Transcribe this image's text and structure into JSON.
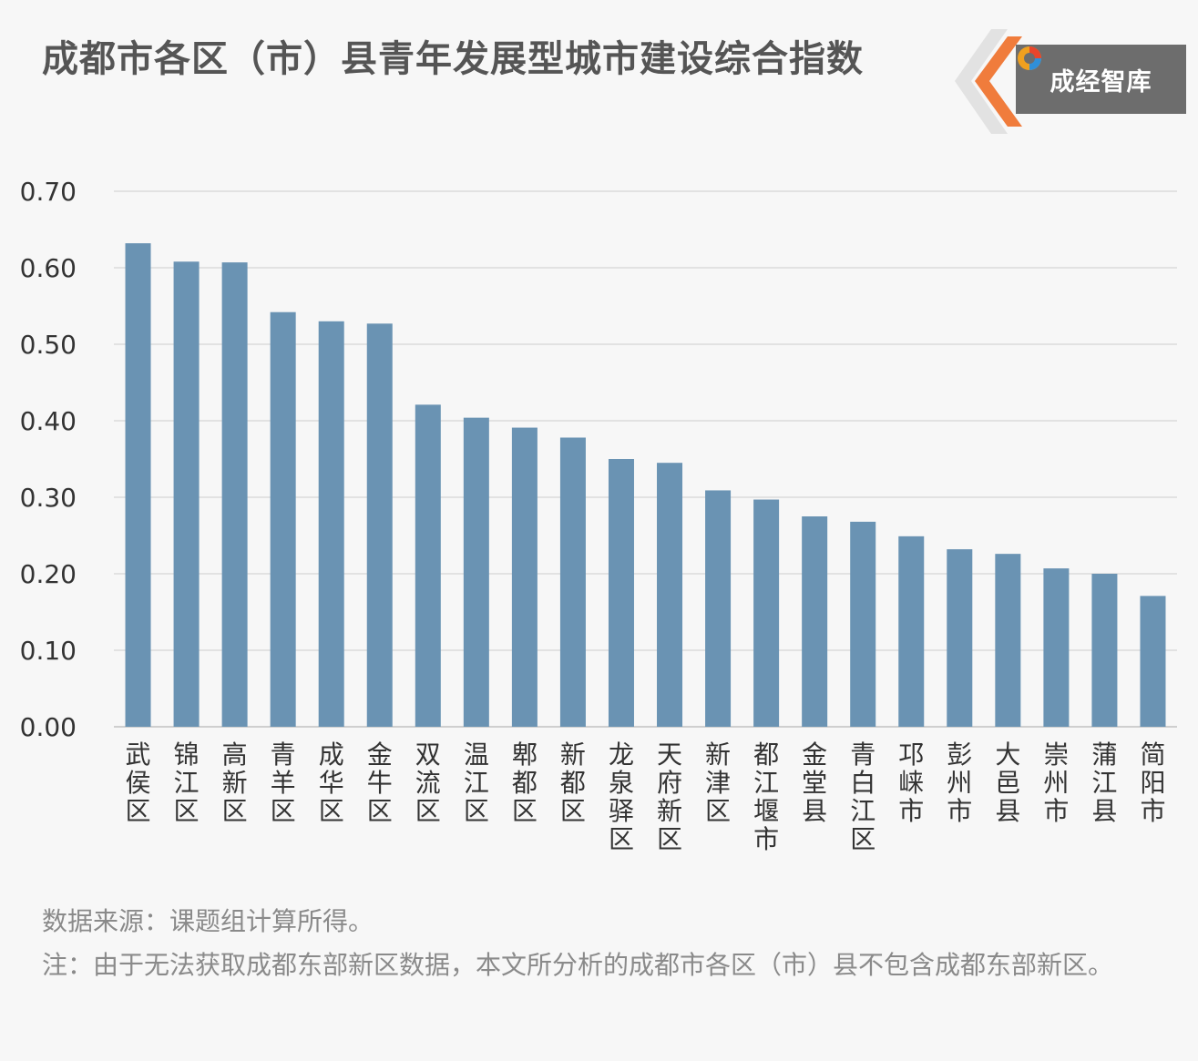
{
  "header": {
    "title": "成都市各区（市）县青年发展型城市建设综合指数",
    "brand_label": "成经智库",
    "brand_icon": "circular-swirl-logo-icon"
  },
  "footer": {
    "source": "数据来源：课题组计算所得。",
    "note": "注：由于无法获取成都东部新区数据，本文所分析的成都市各区（市）县不包含成都东部新区。"
  },
  "colors": {
    "bar": "#6a93b3",
    "grid": "#dcdcdc",
    "axis": "#cfcfcf",
    "brand_box": "#6d6d6d",
    "brand_accent": "#f07c3c"
  },
  "chart_data": {
    "type": "bar",
    "title": "成都市各区（市）县青年发展型城市建设综合指数",
    "xlabel": "",
    "ylabel": "",
    "ylim": [
      0,
      0.7
    ],
    "yticks": [
      "0.00",
      "0.10",
      "0.20",
      "0.30",
      "0.40",
      "0.50",
      "0.60",
      "0.70"
    ],
    "grid": true,
    "categories": [
      "武侯区",
      "锦江区",
      "高新区",
      "青羊区",
      "成华区",
      "金牛区",
      "双流区",
      "温江区",
      "郫都区",
      "新都区",
      "龙泉驿区",
      "天府新区",
      "新津区",
      "都江堰市",
      "金堂县",
      "青白江区",
      "邛崃市",
      "彭州市",
      "大邑县",
      "崇州市",
      "蒲江县",
      "简阳市"
    ],
    "values": [
      0.632,
      0.608,
      0.607,
      0.542,
      0.53,
      0.527,
      0.421,
      0.404,
      0.391,
      0.378,
      0.35,
      0.345,
      0.309,
      0.297,
      0.275,
      0.268,
      0.249,
      0.232,
      0.226,
      0.207,
      0.2,
      0.171
    ]
  }
}
